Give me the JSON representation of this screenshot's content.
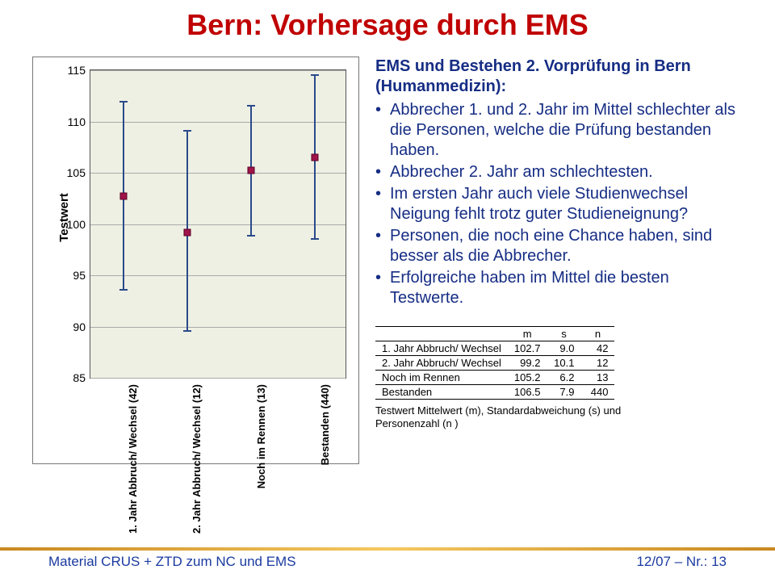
{
  "title": "Bern: Vorhersage durch EMS",
  "chart": {
    "type": "range-dot",
    "y_label": "Testwert",
    "ylim": [
      85,
      115
    ],
    "ytick_step": 5,
    "yticks": [
      85,
      90,
      95,
      100,
      105,
      110,
      115
    ],
    "background_color": "#eef0e3",
    "grid_color": "#aaaaaa",
    "whisker_color": "#2a4a8a",
    "dot_color": "#a0144a",
    "dot_border": "#5a0028",
    "series": [
      {
        "label": "1. Jahr Abbruch/ Wechsel (42)",
        "mean": 102.7,
        "low": 93.5,
        "high": 112.0
      },
      {
        "label": "2. Jahr Abbruch/ Wechsel (12)",
        "mean": 99.2,
        "low": 89.5,
        "high": 109.2
      },
      {
        "label": "Noch im Rennen (13)",
        "mean": 105.2,
        "low": 98.8,
        "high": 111.6
      },
      {
        "label": "Bestanden (440)",
        "mean": 106.5,
        "low": 98.5,
        "high": 114.6
      }
    ]
  },
  "lead": "EMS und Bestehen 2. Vorprüfung in Bern (Humanmedizin):",
  "bullets": [
    "Abbrecher 1. und 2. Jahr im Mittel schlechter als die Personen, welche die Prüfung bestanden haben.",
    "Abbrecher 2. Jahr am schlechtesten.",
    "Im ersten Jahr auch viele Studienwechsel Neigung fehlt trotz guter Studieneignung?",
    "Personen, die noch eine Chance haben, sind besser als die Abbrecher.",
    "Erfolgreiche haben im Mittel die besten Testwerte."
  ],
  "table": {
    "columns": [
      "",
      "m",
      "s",
      "n"
    ],
    "rows": [
      [
        "1. Jahr Abbruch/ Wechsel",
        "102.7",
        "9.0",
        "42"
      ],
      [
        "2. Jahr Abbruch/ Wechsel",
        "99.2",
        "10.1",
        "12"
      ],
      [
        "Noch im Rennen",
        "105.2",
        "6.2",
        "13"
      ],
      [
        "Bestanden",
        "106.5",
        "7.9",
        "440"
      ]
    ]
  },
  "caption": "Testwert Mittelwert (m), Standardabweichung (s) und Personenzahl (n )",
  "footer_left": "Material CRUS + ZTD zum NC und EMS",
  "footer_right": "12/07 – Nr.: 13"
}
